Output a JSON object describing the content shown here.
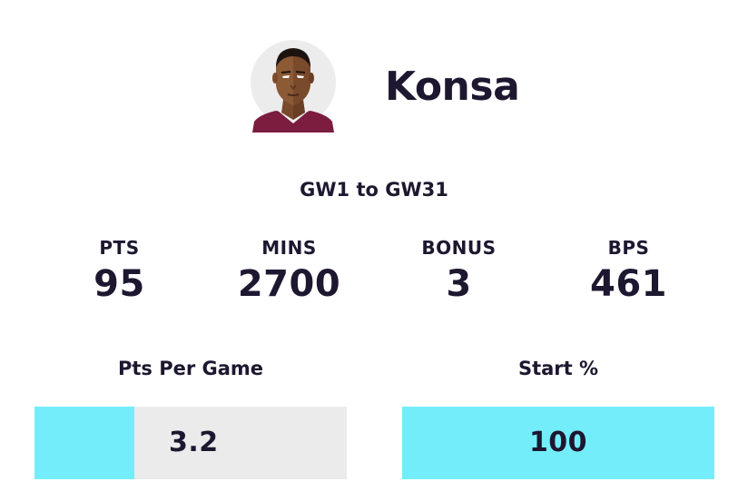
{
  "player": {
    "name": "Konsa",
    "avatar_icon": "player-avatar-icon"
  },
  "range_label": "GW1 to GW31",
  "stats": [
    {
      "label": "PTS",
      "value": "95"
    },
    {
      "label": "MINS",
      "value": "2700"
    },
    {
      "label": "BONUS",
      "value": "3"
    },
    {
      "label": "BPS",
      "value": "461"
    }
  ],
  "metrics": {
    "pts_per_game": {
      "label": "Pts Per Game",
      "value": "3.2",
      "fill_fraction": 0.32
    },
    "start_pct": {
      "label": "Start %",
      "value": "100",
      "fill_fraction": 1.0
    }
  },
  "colors": {
    "text": "#1e1730",
    "bar_fill": "#74edfa",
    "bar_track": "#ebebeb",
    "shirt": "#7c1c3e"
  }
}
